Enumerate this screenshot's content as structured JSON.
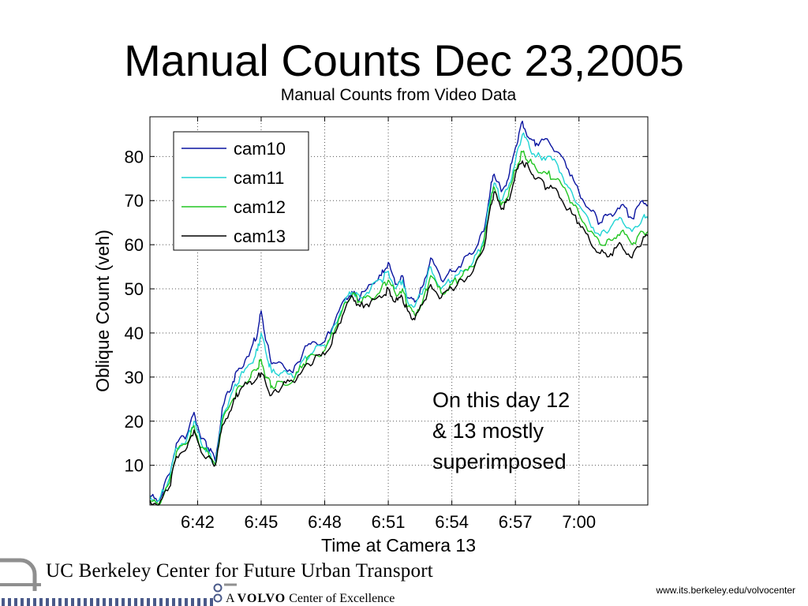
{
  "slide": {
    "title": "Manual Counts Dec 23,2005",
    "annotation_lines": [
      "On this day 12",
      "& 13 mostly",
      "superimposed"
    ]
  },
  "footer": {
    "org_name": "UC Berkeley Center for Future Urban Transport",
    "excellence_prefix": "A",
    "excellence_brand": "VOLVO",
    "excellence_suffix": "Center of Excellence",
    "url": "www.its.berkeley.edu/volvocenter",
    "logo_color": "#8f8f8f"
  },
  "chart_data": {
    "type": "line",
    "title": "Manual Counts from Video Data",
    "xlabel": "Time at Camera 13",
    "ylabel": "Oblique Count (veh)",
    "xticks": [
      "6:42",
      "6:45",
      "6:48",
      "6:51",
      "6:54",
      "6:57",
      "7:00"
    ],
    "xlim": [
      "6:39:45",
      "7:03:15"
    ],
    "ylim": [
      1,
      89
    ],
    "yticks": [
      10,
      20,
      30,
      40,
      50,
      60,
      70,
      80
    ],
    "grid": true,
    "legend_position": "top-left",
    "series": [
      {
        "name": "cam10",
        "color": "#0a14a0",
        "x": [
          "6:39:45",
          "6:40:10",
          "6:40:40",
          "6:41:00",
          "6:41:30",
          "6:41:50",
          "6:42:10",
          "6:42:30",
          "6:42:50",
          "6:43:10",
          "6:43:40",
          "6:44:00",
          "6:44:30",
          "6:44:50",
          "6:45:00",
          "6:45:15",
          "6:45:30",
          "6:46:00",
          "6:46:30",
          "6:47:00",
          "6:47:30",
          "6:48:00",
          "6:48:30",
          "6:49:00",
          "6:49:20",
          "6:49:40",
          "6:50:10",
          "6:50:40",
          "6:51:00",
          "6:51:20",
          "6:51:40",
          "6:51:55",
          "6:52:15",
          "6:52:40",
          "6:53:00",
          "6:53:30",
          "6:54:00",
          "6:54:30",
          "6:55:00",
          "6:55:30",
          "6:55:50",
          "6:56:00",
          "6:56:20",
          "6:56:40",
          "6:57:00",
          "6:57:20",
          "6:57:40",
          "6:58:00",
          "6:58:30",
          "6:59:00",
          "6:59:30",
          "7:00:00",
          "7:00:30",
          "7:01:00",
          "7:01:30",
          "7:02:00",
          "7:02:30",
          "7:03:00",
          "7:03:15"
        ],
        "y": [
          3,
          2,
          8,
          15,
          17,
          22,
          16,
          14,
          11,
          23,
          29,
          32,
          36,
          40,
          45,
          38,
          33,
          33,
          31,
          36,
          38,
          38,
          43,
          48,
          49,
          48,
          51,
          53,
          56,
          51,
          53,
          48,
          47,
          51,
          57,
          52,
          54,
          56,
          58,
          63,
          73,
          76,
          72,
          75,
          82,
          88,
          84,
          83,
          84,
          81,
          77,
          72,
          68,
          65,
          67,
          69,
          66,
          70,
          69
        ]
      },
      {
        "name": "cam11",
        "color": "#20d4d4",
        "x": [
          "6:39:45",
          "6:40:10",
          "6:40:40",
          "6:41:00",
          "6:41:30",
          "6:41:50",
          "6:42:10",
          "6:42:30",
          "6:42:50",
          "6:43:10",
          "6:43:40",
          "6:44:00",
          "6:44:30",
          "6:44:50",
          "6:45:00",
          "6:45:15",
          "6:45:30",
          "6:46:00",
          "6:46:30",
          "6:47:00",
          "6:47:30",
          "6:48:00",
          "6:48:30",
          "6:49:00",
          "6:49:20",
          "6:49:40",
          "6:50:10",
          "6:50:40",
          "6:51:00",
          "6:51:20",
          "6:51:40",
          "6:51:55",
          "6:52:15",
          "6:52:40",
          "6:53:00",
          "6:53:30",
          "6:54:00",
          "6:54:30",
          "6:55:00",
          "6:55:30",
          "6:55:50",
          "6:56:00",
          "6:56:20",
          "6:56:40",
          "6:57:00",
          "6:57:20",
          "6:57:40",
          "6:58:00",
          "6:58:30",
          "6:59:00",
          "6:59:30",
          "7:00:00",
          "7:00:30",
          "7:01:00",
          "7:01:30",
          "7:02:00",
          "7:02:30",
          "7:03:00",
          "7:03:15"
        ],
        "y": [
          3,
          2,
          7,
          14,
          16,
          20,
          15,
          13,
          10,
          21,
          27,
          30,
          33,
          36,
          40,
          35,
          31,
          31,
          30,
          34,
          36,
          37,
          42,
          48,
          49,
          48,
          50,
          52,
          54,
          50,
          52,
          47,
          46,
          50,
          55,
          50,
          52,
          54,
          56,
          61,
          71,
          74,
          70,
          73,
          79,
          85,
          82,
          80,
          80,
          78,
          73,
          69,
          65,
          62,
          64,
          66,
          63,
          66,
          66
        ]
      },
      {
        "name": "cam12",
        "color": "#22c522",
        "x": [
          "6:39:45",
          "6:40:10",
          "6:40:40",
          "6:41:00",
          "6:41:30",
          "6:41:50",
          "6:42:10",
          "6:42:30",
          "6:42:50",
          "6:43:10",
          "6:43:40",
          "6:44:00",
          "6:44:30",
          "6:44:50",
          "6:45:00",
          "6:45:15",
          "6:45:30",
          "6:46:00",
          "6:46:30",
          "6:47:00",
          "6:47:30",
          "6:48:00",
          "6:48:30",
          "6:49:00",
          "6:49:20",
          "6:49:40",
          "6:50:10",
          "6:50:40",
          "6:51:00",
          "6:51:20",
          "6:51:40",
          "6:51:55",
          "6:52:15",
          "6:52:40",
          "6:53:00",
          "6:53:30",
          "6:54:00",
          "6:54:30",
          "6:55:00",
          "6:55:30",
          "6:55:50",
          "6:56:00",
          "6:56:20",
          "6:56:40",
          "6:57:00",
          "6:57:20",
          "6:57:40",
          "6:58:00",
          "6:58:30",
          "6:59:00",
          "6:59:30",
          "7:00:00",
          "7:00:30",
          "7:01:00",
          "7:01:30",
          "7:02:00",
          "7:02:30",
          "7:03:00",
          "7:03:15"
        ],
        "y": [
          2,
          1,
          6,
          13,
          15,
          19,
          14,
          13,
          10,
          20,
          25,
          28,
          30,
          32,
          34,
          30,
          28,
          29,
          29,
          33,
          35,
          36,
          41,
          47,
          49,
          47,
          48,
          50,
          52,
          49,
          50,
          46,
          44,
          48,
          53,
          49,
          51,
          53,
          55,
          60,
          70,
          73,
          69,
          71,
          77,
          81,
          79,
          77,
          76,
          75,
          71,
          67,
          63,
          60,
          61,
          63,
          60,
          63,
          63
        ]
      },
      {
        "name": "cam13",
        "color": "#000000",
        "x": [
          "6:39:45",
          "6:40:10",
          "6:40:40",
          "6:41:00",
          "6:41:30",
          "6:41:50",
          "6:42:10",
          "6:42:30",
          "6:42:50",
          "6:43:10",
          "6:43:40",
          "6:44:00",
          "6:44:30",
          "6:44:50",
          "6:45:00",
          "6:45:15",
          "6:45:30",
          "6:46:00",
          "6:46:30",
          "6:47:00",
          "6:47:30",
          "6:48:00",
          "6:48:30",
          "6:49:00",
          "6:49:20",
          "6:49:40",
          "6:50:10",
          "6:50:40",
          "6:51:00",
          "6:51:20",
          "6:51:40",
          "6:51:55",
          "6:52:15",
          "6:52:40",
          "6:53:00",
          "6:53:30",
          "6:54:00",
          "6:54:30",
          "6:55:00",
          "6:55:30",
          "6:55:50",
          "6:56:00",
          "6:56:20",
          "6:56:40",
          "6:57:00",
          "6:57:20",
          "6:57:40",
          "6:58:00",
          "6:58:30",
          "6:59:00",
          "6:59:30",
          "7:00:00",
          "7:00:30",
          "7:01:00",
          "7:01:30",
          "7:02:00",
          "7:02:30",
          "7:03:00",
          "7:03:15"
        ],
        "y": [
          2,
          1,
          5,
          12,
          14,
          18,
          13,
          12,
          10,
          19,
          24,
          27,
          29,
          30,
          31,
          28,
          26,
          28,
          29,
          32,
          34,
          35,
          40,
          46,
          48,
          46,
          47,
          48,
          50,
          47,
          48,
          45,
          43,
          47,
          51,
          48,
          50,
          52,
          54,
          59,
          69,
          72,
          68,
          70,
          76,
          79,
          77,
          75,
          73,
          72,
          68,
          65,
          61,
          58,
          58,
          60,
          57,
          61,
          62
        ]
      }
    ]
  }
}
